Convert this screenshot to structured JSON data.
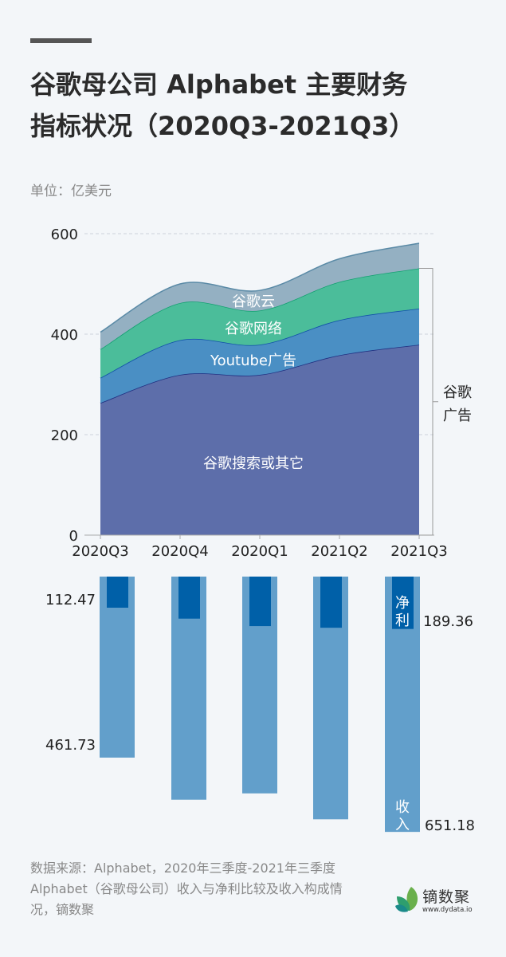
{
  "header": {
    "title_line1": "谷歌母公司 Alphabet 主要财务",
    "title_line2": "指标状况（2020Q3-2021Q3）",
    "unit": "单位：亿美元"
  },
  "colors": {
    "background": "#f3f6f9",
    "search": "#5d6eaa",
    "youtube": "#4a8fc4",
    "network": "#4bbd9a",
    "cloud": "#94b0c2",
    "revenue_bar": "#629fcb",
    "net_income_bar": "#0060a8"
  },
  "chart_data": [
    {
      "type": "area",
      "stacked": true,
      "categories": [
        "2020Q3",
        "2020Q4",
        "2020Q1",
        "2021Q2",
        "2021Q3"
      ],
      "yticks": [
        "0",
        "200",
        "400",
        "600"
      ],
      "ylim": [
        0,
        600
      ],
      "grid": true,
      "series": [
        {
          "name": "谷歌搜索或其它",
          "values": [
            263,
            319,
            319,
            358,
            379
          ]
        },
        {
          "name": "Youtube广告",
          "values": [
            50,
            69,
            60,
            70,
            72
          ]
        },
        {
          "name": "谷歌网络",
          "values": [
            57,
            74,
            68,
            76,
            80
          ]
        },
        {
          "name": "谷歌云",
          "values": [
            34,
            38,
            40,
            46,
            50
          ]
        }
      ],
      "bracket_label_line1": "谷歌",
      "bracket_label_line2": "广告"
    },
    {
      "type": "bar",
      "orientation": "downward",
      "categories": [
        "2020Q3",
        "2020Q4",
        "2020Q1",
        "2021Q2",
        "2021Q3"
      ],
      "series": [
        {
          "name": "收入",
          "values": [
            461.73,
            569,
            553,
            619,
            651.18
          ]
        },
        {
          "name": "净利",
          "values": [
            112.47,
            152,
            179,
            185,
            189.36
          ]
        }
      ],
      "data_labels": {
        "revenue_first": "461.73",
        "revenue_last": "651.18",
        "net_first": "112.47",
        "net_last": "189.36"
      },
      "revenue_label": "收入",
      "net_label": "净利"
    }
  ],
  "footer": {
    "source": "数据来源：Alphabet，2020年三季度-2021年三季度Alphabet（谷歌母公司）收入与净利比较及收入构成情况，镝数聚",
    "logo_text": "镝数聚",
    "logo_url": "www.dydata.io"
  }
}
